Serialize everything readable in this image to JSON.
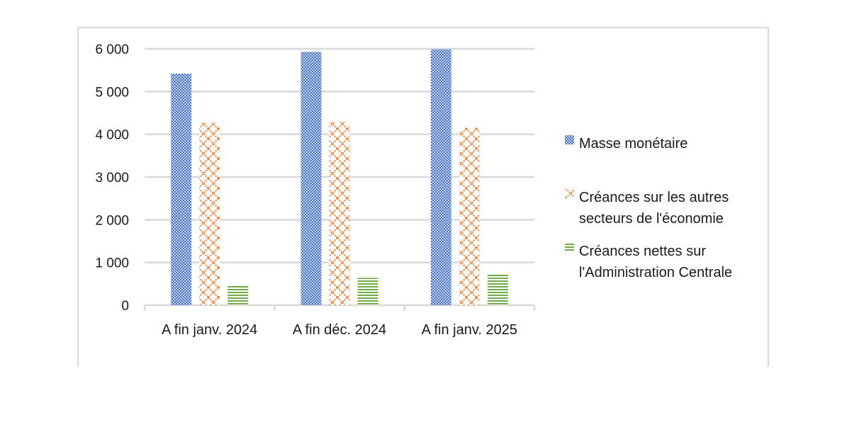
{
  "chart_data": {
    "type": "bar",
    "categories": [
      "A fin janv. 2024",
      "A fin déc. 2024",
      "A fin janv. 2025"
    ],
    "series": [
      {
        "name": "Masse monétaire",
        "values": [
          5420,
          5930,
          5990
        ],
        "color": "#4472c4",
        "pattern": "checker"
      },
      {
        "name": "Créances sur les autres secteurs de l'économie",
        "values": [
          4270,
          4300,
          4150
        ],
        "color": "#ed7d31",
        "pattern": "diamond"
      },
      {
        "name": "Créances nettes sur l'Administration Centrale",
        "values": [
          480,
          640,
          740
        ],
        "color": "#70ad47",
        "pattern": "horizontal"
      }
    ],
    "legend_lines": [
      [
        "Masse monétaire"
      ],
      [
        "Créances sur les autres",
        "secteurs de l'économie"
      ],
      [
        "Créances nettes sur",
        "l'Administration Centrale"
      ]
    ],
    "y_ticks": [
      "0",
      "1 000",
      "2 000",
      "3 000",
      "4 000",
      "5 000",
      "6 000"
    ],
    "ylim": [
      0,
      6000
    ],
    "grid": true,
    "legend_position": "right"
  }
}
